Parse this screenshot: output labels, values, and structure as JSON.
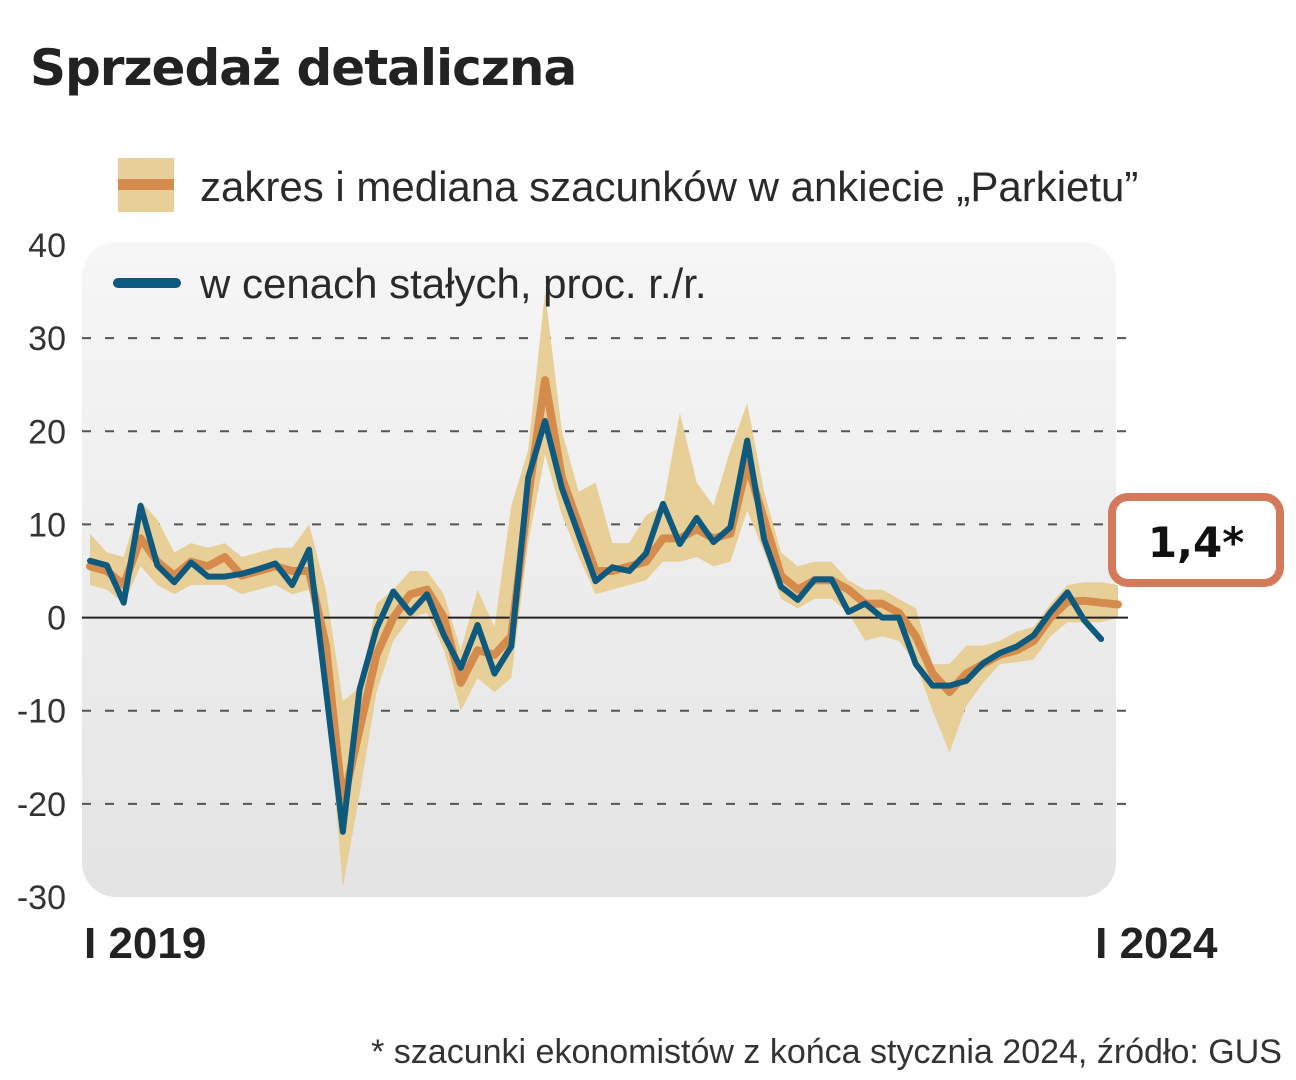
{
  "chart_data": {
    "type": "line",
    "title": "Sprzedaż detaliczna",
    "legend": [
      {
        "label": "zakres i mediana szacunków w ankiecie „Parkietu”",
        "color": "#d9a75b"
      },
      {
        "label": "w cenach stałych, proc. r./r.",
        "color": "#0e5a7e"
      }
    ],
    "ylim": [
      -30,
      40
    ],
    "yticks": [
      40,
      30,
      20,
      10,
      0,
      -10,
      -20,
      -30
    ],
    "ytick_labels": [
      "40",
      "30",
      "20",
      "10",
      "0",
      "-10",
      "-20",
      "-30"
    ],
    "xtick_labels": [
      {
        "label": "I 2019",
        "index": 0
      },
      {
        "label": "I 2024",
        "index": 60
      }
    ],
    "callout": {
      "value": 1.4,
      "label": "1,4*"
    },
    "series": [
      {
        "name": "w cenach stałych, proc. r./r.",
        "values": [
          6.1,
          5.6,
          1.6,
          12.0,
          5.6,
          3.8,
          5.9,
          4.4,
          4.4,
          4.7,
          5.2,
          5.8,
          3.5,
          7.3,
          -7.7,
          -23.0,
          -7.7,
          -1.2,
          2.8,
          0.5,
          2.5,
          -1.9,
          -5.4,
          -0.8,
          -6.0,
          -3.1,
          15.0,
          21.1,
          13.9,
          8.9,
          3.9,
          5.4,
          5.0,
          6.9,
          12.2,
          7.9,
          10.7,
          8.1,
          9.7,
          19.0,
          8.4,
          3.3,
          1.9,
          4.1,
          4.1,
          0.6,
          1.5,
          0.0,
          0.0,
          -5.0,
          -7.3,
          -7.3,
          -6.8,
          -4.9,
          -3.8,
          -3.1,
          -1.9,
          0.6,
          2.7,
          -0.3,
          -2.3
        ]
      },
      {
        "name": "mediana szacunków",
        "values": [
          5.5,
          5.0,
          3.5,
          8.5,
          6.0,
          4.5,
          6.0,
          5.5,
          6.5,
          4.5,
          5.0,
          5.5,
          5.0,
          5.0,
          -3.0,
          -20.0,
          -12.0,
          -4.0,
          0.0,
          2.5,
          3.0,
          0.0,
          -7.0,
          -3.5,
          -4.0,
          -2.0,
          13.0,
          25.5,
          15.0,
          10.0,
          5.0,
          5.0,
          5.5,
          6.0,
          8.5,
          8.5,
          9.5,
          8.5,
          9.0,
          16.5,
          10.5,
          4.5,
          3.0,
          4.0,
          4.0,
          3.0,
          1.5,
          1.5,
          0.5,
          -2.0,
          -6.0,
          -8.0,
          -6.0,
          -5.0,
          -4.0,
          -3.5,
          -2.5,
          0.0,
          1.7,
          1.8,
          1.6,
          1.4
        ]
      },
      {
        "name": "zakres szacunków – min",
        "values": [
          3.5,
          3.0,
          1.5,
          5.5,
          3.5,
          2.5,
          3.5,
          3.5,
          3.5,
          2.5,
          3.0,
          3.5,
          2.5,
          3.0,
          -7.0,
          -29.0,
          -19.0,
          -8.0,
          -2.5,
          0.0,
          0.5,
          -3.5,
          -10.0,
          -6.5,
          -8.0,
          -6.5,
          8.0,
          17.5,
          11.0,
          6.5,
          2.5,
          3.0,
          3.5,
          4.0,
          6.0,
          6.0,
          6.5,
          5.5,
          6.0,
          11.5,
          7.0,
          2.0,
          1.0,
          2.0,
          2.0,
          0.5,
          -2.5,
          -2.0,
          -2.5,
          -5.0,
          -10.0,
          -14.5,
          -9.5,
          -7.0,
          -5.0,
          -4.8,
          -4.5,
          -2.0,
          -0.5,
          -0.5,
          -0.5,
          0.0
        ]
      },
      {
        "name": "zakres szacunków – max",
        "values": [
          9.0,
          7.0,
          6.5,
          12.5,
          10.5,
          7.0,
          8.0,
          7.5,
          8.0,
          6.5,
          7.0,
          7.5,
          7.5,
          10.0,
          3.0,
          -9.0,
          -7.5,
          1.5,
          3.0,
          5.0,
          5.0,
          2.5,
          -3.5,
          3.0,
          -1.0,
          12.0,
          18.0,
          35.0,
          20.0,
          13.5,
          14.5,
          8.0,
          8.0,
          11.0,
          12.0,
          22.0,
          14.5,
          12.0,
          18.0,
          23.0,
          13.5,
          7.0,
          5.5,
          6.0,
          6.0,
          4.0,
          3.0,
          3.0,
          2.0,
          1.0,
          -5.0,
          -5.0,
          -3.0,
          -3.0,
          -2.5,
          -1.5,
          -1.0,
          1.5,
          3.5,
          3.8,
          3.8,
          3.5
        ]
      }
    ]
  },
  "footnote": "* szacunki ekonomistów z końca stycznia 2024, źródło: GUS",
  "colors": {
    "band": "#e8cf98",
    "median": "#d58b4c",
    "actual": "#0e5a7e",
    "callout_border": "#d47a5a",
    "panel": "#ececec"
  }
}
